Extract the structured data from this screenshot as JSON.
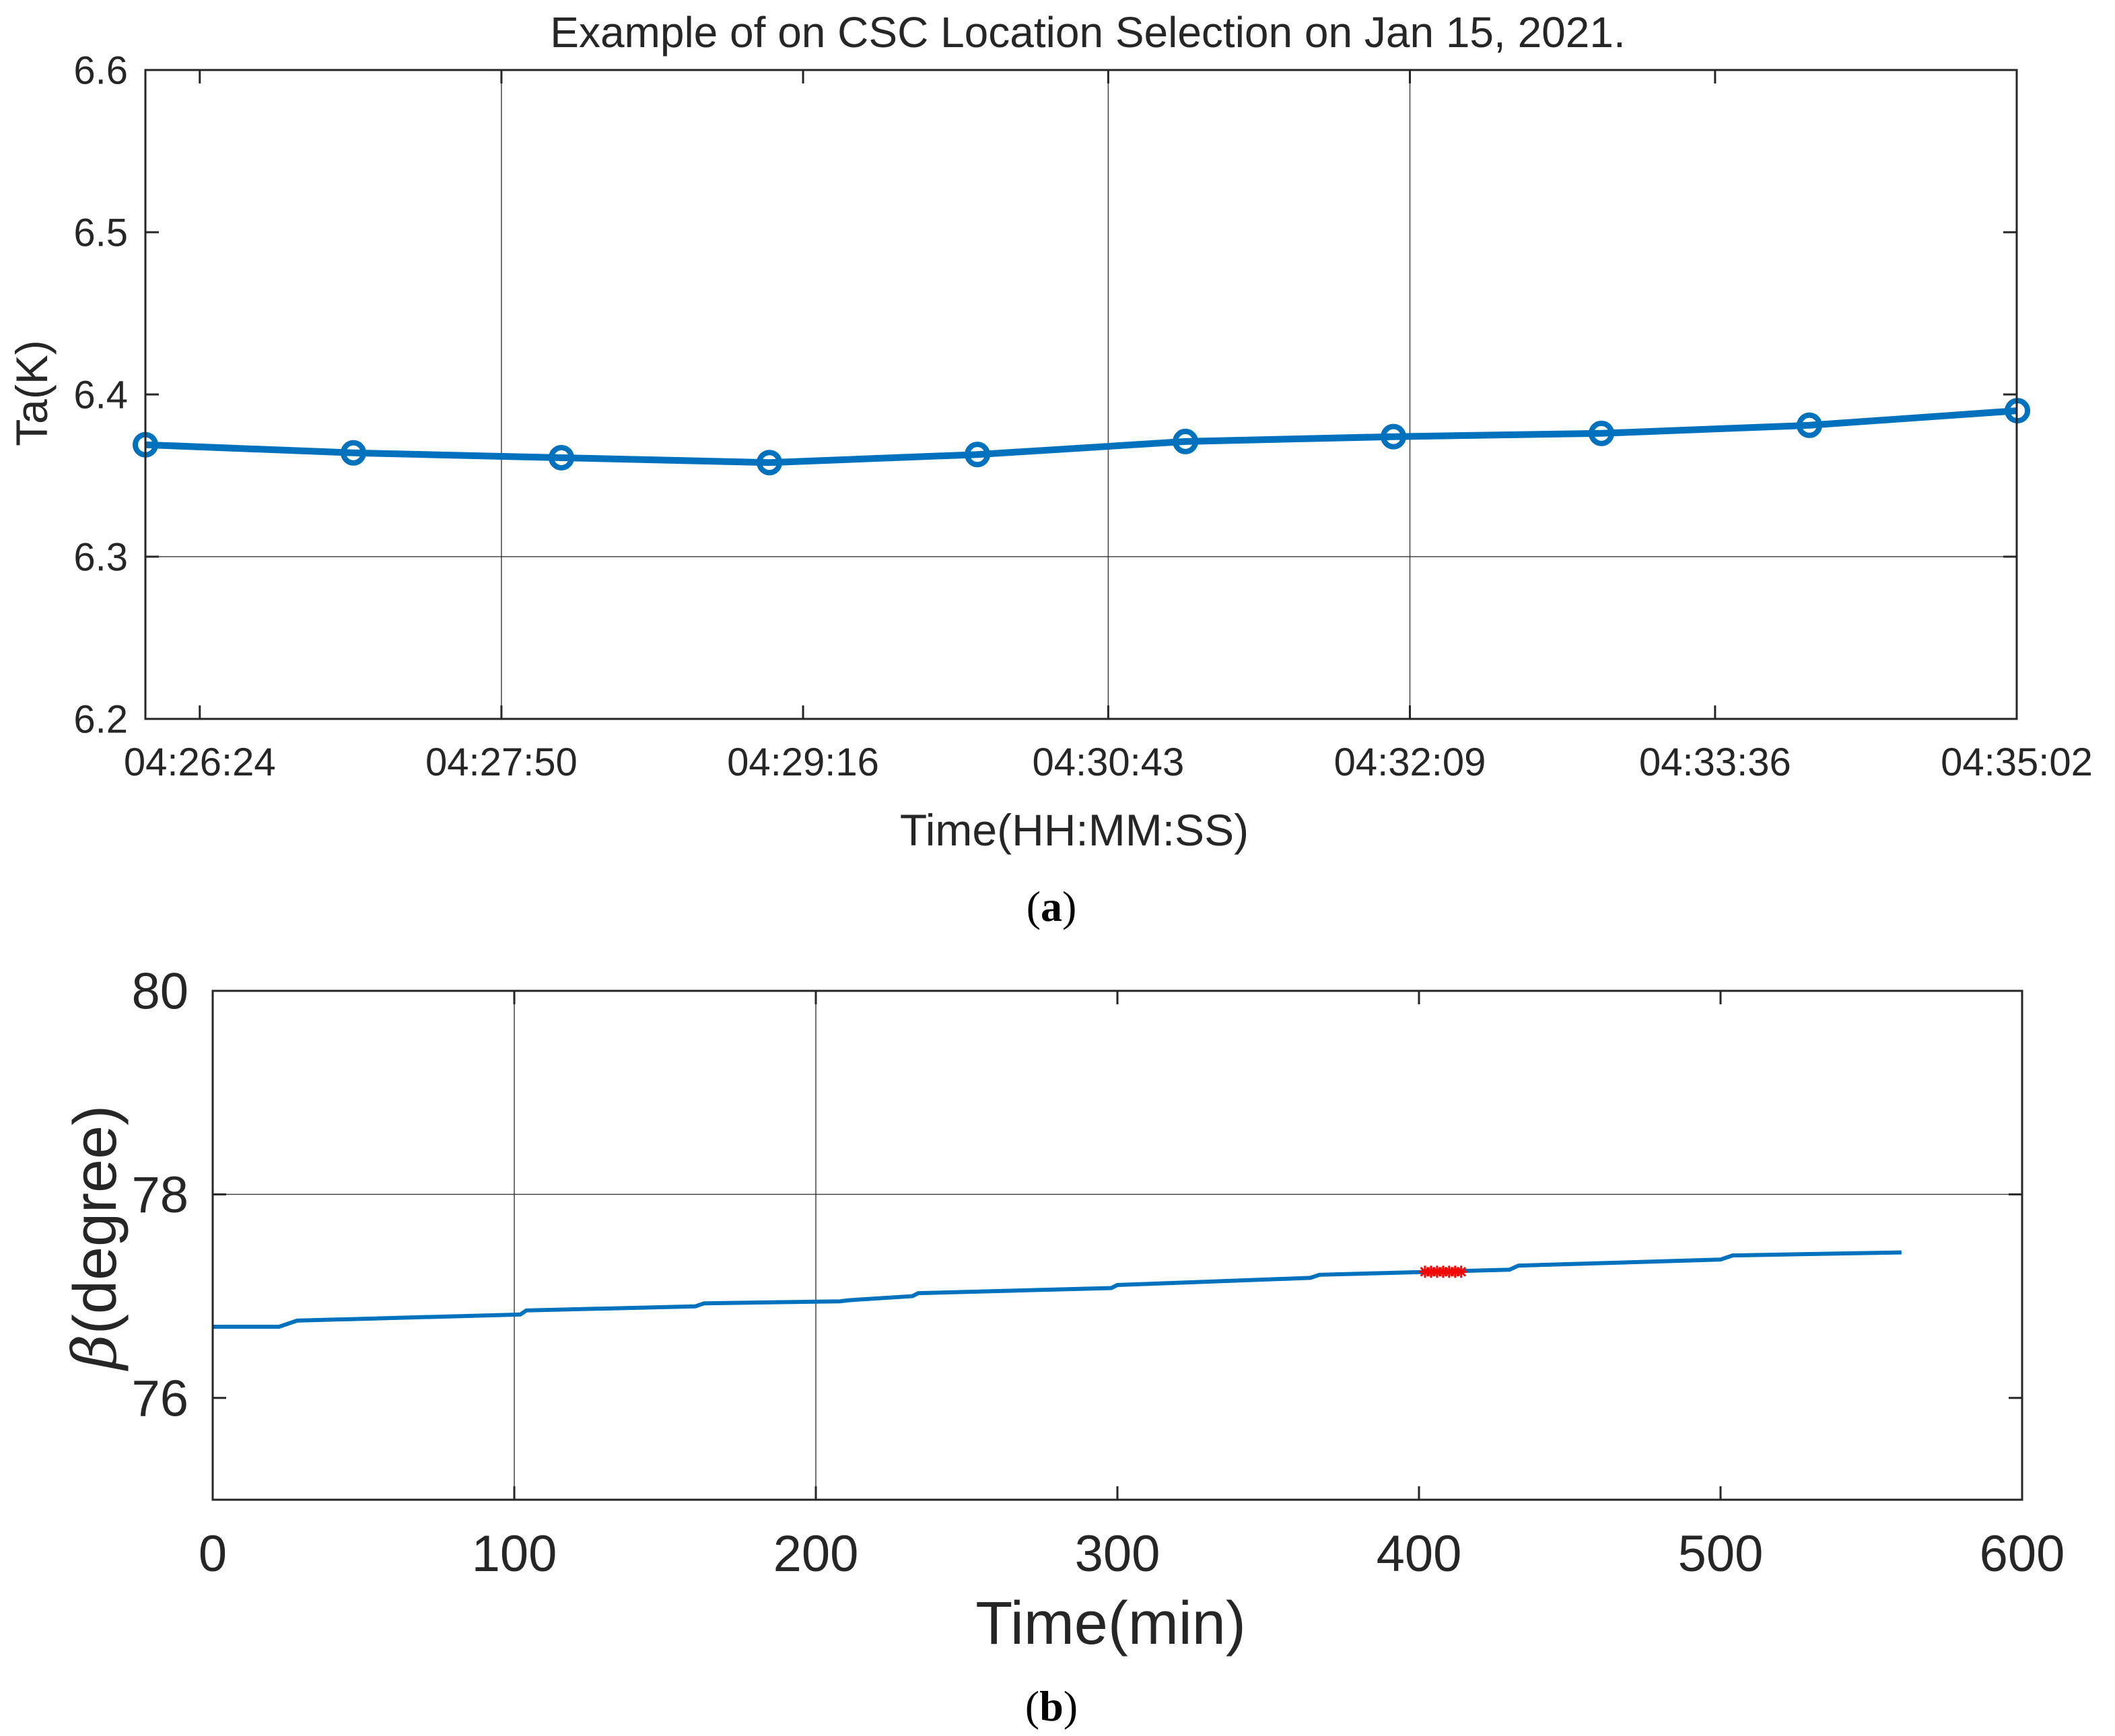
{
  "colors": {
    "series": "#0072BD",
    "highlight": "#FF0000",
    "axis": "#262626",
    "grid": "#262626"
  },
  "chart_data": [
    {
      "panel": "a",
      "type": "line",
      "title": "Example of on CSC Location Selection on Jan 15, 2021.",
      "xlabel": "Time(HH:MM:SS)",
      "ylabel": "Ta(K)",
      "caption": {
        "open": "(",
        "letter": "a",
        "close": ")"
      },
      "x_tick_labels": [
        "04:26:24",
        "04:27:50",
        "04:29:16",
        "04:30:43",
        "04:32:09",
        "04:33:36",
        "04:35:02"
      ],
      "x_tick_seconds": [
        15984,
        16070,
        16156,
        16243,
        16329,
        16416,
        16502
      ],
      "xlim_seconds": [
        15968.5,
        16502
      ],
      "y_tick_labels": [
        "6.2",
        "6.3",
        "6.4",
        "6.5",
        "6.6"
      ],
      "y_ticks": [
        6.2,
        6.3,
        6.4,
        6.5,
        6.6
      ],
      "ylim": [
        6.2,
        6.6
      ],
      "grid_x_seconds": [
        16070,
        16243,
        16329
      ],
      "grid_y": [
        6.3
      ],
      "marker": "circle",
      "series": [
        {
          "name": "Ta",
          "x_seconds": [
            15968.5,
            16027.8,
            16087.1,
            16146.4,
            16205.7,
            16265.0,
            16324.3,
            16383.6,
            16442.9,
            16502.2
          ],
          "values": [
            6.369,
            6.364,
            6.361,
            6.358,
            6.363,
            6.371,
            6.374,
            6.376,
            6.381,
            6.39
          ]
        }
      ]
    },
    {
      "panel": "b",
      "type": "line",
      "xlabel": "Time(min)",
      "ylabel_symbol": "β",
      "ylabel_text": "(degree)",
      "caption": {
        "open": "(",
        "letter": "b",
        "close": ")"
      },
      "x_tick_labels": [
        "0",
        "100",
        "200",
        "300",
        "400",
        "500",
        "600"
      ],
      "x_ticks": [
        0,
        100,
        200,
        300,
        400,
        500,
        600
      ],
      "xlim": [
        0,
        600
      ],
      "y_tick_labels": [
        "76",
        "78",
        "80"
      ],
      "y_ticks": [
        76,
        78,
        80
      ],
      "ylim": [
        75,
        80
      ],
      "grid_x": [
        100,
        200
      ],
      "grid_y": [
        78
      ],
      "series": [
        {
          "name": "beta",
          "x": [
            0,
            22,
            28,
            102,
            104,
            160,
            163,
            208,
            211,
            232,
            234,
            298,
            300,
            364,
            367,
            430,
            433,
            500,
            504,
            560
          ],
          "values": [
            76.7,
            76.7,
            76.76,
            76.82,
            76.86,
            76.9,
            76.93,
            76.95,
            76.96,
            77.0,
            77.03,
            77.08,
            77.11,
            77.18,
            77.21,
            77.26,
            77.3,
            77.36,
            77.4,
            77.43
          ]
        },
        {
          "name": "selected",
          "marker": "asterisk",
          "x": [
            402,
            404,
            406,
            408,
            410,
            412,
            414
          ],
          "values": [
            77.24,
            77.24,
            77.24,
            77.24,
            77.24,
            77.24,
            77.24
          ]
        }
      ]
    }
  ]
}
